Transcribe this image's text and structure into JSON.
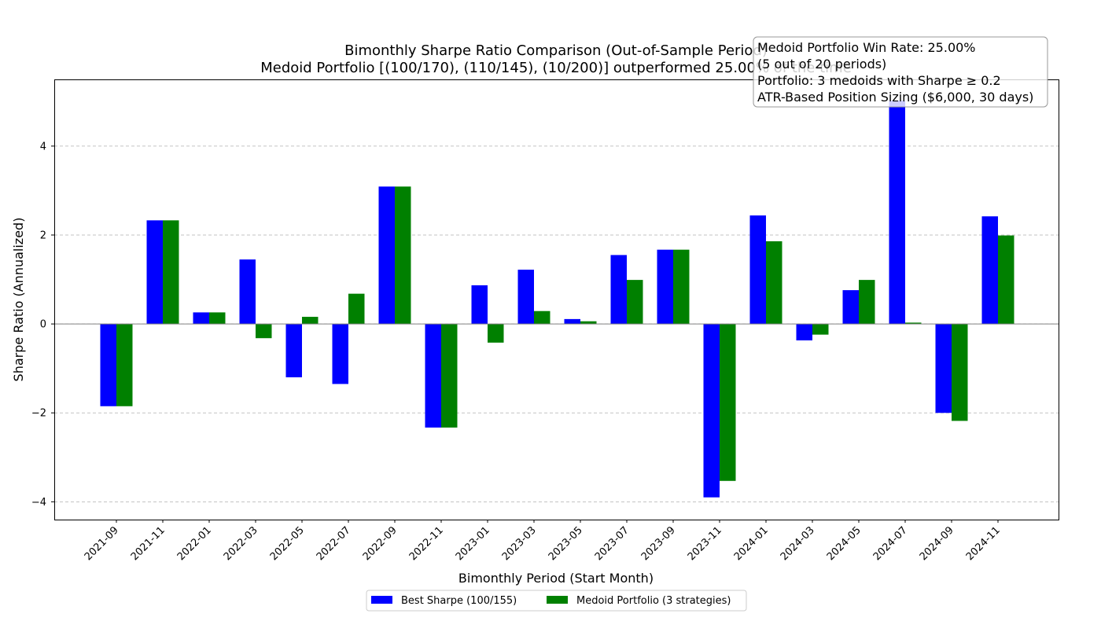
{
  "chart_data": {
    "type": "bar",
    "title": "Bimonthly Sharpe Ratio Comparison (Out-of-Sample Period)",
    "subtitle": "Medoid Portfolio [(100/170), (110/145), (10/200)] outperformed 25.00% of the time",
    "xlabel": "Bimonthly Period (Start Month)",
    "ylabel": "Sharpe Ratio (Annualized)",
    "ylim": [
      -4.4,
      5.5
    ],
    "yticks": [
      "−4",
      "−2",
      "0",
      "2",
      "4"
    ],
    "ytick_values": [
      -4,
      -2,
      0,
      2,
      4
    ],
    "grid": true,
    "legend_position": "bottom-center",
    "categories": [
      "2021-09",
      "2021-11",
      "2022-01",
      "2022-03",
      "2022-05",
      "2022-07",
      "2022-09",
      "2022-11",
      "2023-01",
      "2023-03",
      "2023-05",
      "2023-07",
      "2023-09",
      "2023-11",
      "2024-01",
      "2024-03",
      "2024-05",
      "2024-07",
      "2024-09",
      "2024-11"
    ],
    "series": [
      {
        "name": "Best Sharpe (100/155)",
        "color": "#0000ff",
        "values": [
          -1.85,
          2.33,
          0.26,
          1.45,
          -1.2,
          -1.35,
          3.09,
          -2.33,
          0.87,
          1.22,
          0.11,
          1.55,
          1.67,
          -3.9,
          2.44,
          -0.37,
          0.76,
          5.02,
          -2.0,
          2.42
        ]
      },
      {
        "name": "Medoid Portfolio (3 strategies)",
        "color": "#008000",
        "values": [
          -1.85,
          2.33,
          0.26,
          -0.32,
          0.16,
          0.68,
          3.09,
          -2.33,
          -0.42,
          0.29,
          0.06,
          0.99,
          1.67,
          -3.53,
          1.86,
          -0.24,
          0.99,
          0.03,
          -2.18,
          1.99
        ]
      }
    ],
    "annotation": {
      "lines": [
        "Medoid Portfolio Win Rate: 25.00%",
        "(5 out of 20 periods)",
        "Portfolio: 3 medoids with Sharpe ≥ 0.2",
        "ATR-Based Position Sizing ($6,000, 30 days)"
      ]
    }
  }
}
